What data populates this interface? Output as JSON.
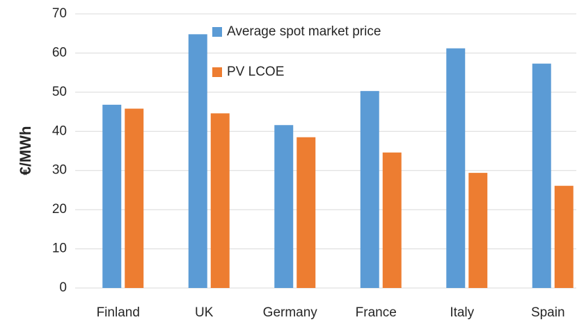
{
  "chart_data": {
    "type": "bar",
    "y_label": "€/MWh",
    "categories": [
      "Finland",
      "UK",
      "Germany",
      "France",
      "Italy",
      "Spain"
    ],
    "series": [
      {
        "name": "Average spot market price",
        "color": "#5b9bd5",
        "values": [
          46.8,
          64.8,
          41.6,
          50.3,
          61.2,
          57.3
        ]
      },
      {
        "name": "PV LCOE",
        "color": "#ed7d31",
        "values": [
          45.8,
          44.6,
          38.5,
          34.6,
          29.4,
          26.1
        ]
      }
    ],
    "ylim": [
      0,
      70
    ],
    "yticks": [
      0,
      10,
      20,
      30,
      40,
      50,
      60,
      70
    ],
    "grid": true
  }
}
